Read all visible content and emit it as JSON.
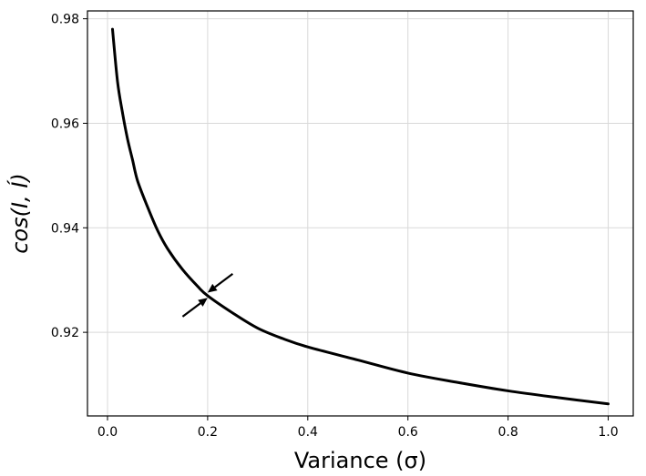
{
  "chart_data": {
    "type": "line",
    "title": "",
    "xlabel": "Variance (σ)",
    "ylabel": "cos(I, Í)",
    "xlim": [
      -0.04,
      1.05
    ],
    "ylim": [
      0.904,
      0.9815
    ],
    "xticks": [
      0.0,
      0.2,
      0.4,
      0.6,
      0.8,
      1.0
    ],
    "xtick_labels": [
      "0.0",
      "0.2",
      "0.4",
      "0.6",
      "0.8",
      "1.0"
    ],
    "yticks": [
      0.92,
      0.94,
      0.96,
      0.98
    ],
    "ytick_labels": [
      "0.92",
      "0.94",
      "0.96",
      "0.98"
    ],
    "grid": true,
    "legend": "none",
    "series": [
      {
        "color": "#000000",
        "x": [
          0.01,
          0.02,
          0.03,
          0.04,
          0.05,
          0.06,
          0.08,
          0.1,
          0.12,
          0.15,
          0.18,
          0.2,
          0.25,
          0.3,
          0.35,
          0.4,
          0.5,
          0.6,
          0.7,
          0.8,
          0.9,
          1.0
        ],
        "y": [
          0.978,
          0.968,
          0.962,
          0.957,
          0.953,
          0.949,
          0.944,
          0.9395,
          0.936,
          0.932,
          0.9288,
          0.927,
          0.9237,
          0.9208,
          0.9188,
          0.9172,
          0.9147,
          0.9122,
          0.9104,
          0.9088,
          0.9075,
          0.9063
        ]
      }
    ],
    "annotations": [
      {
        "type": "arrow",
        "from": [
          0.15,
          0.923
        ],
        "to": [
          0.2,
          0.9266
        ],
        "color": "#000000"
      },
      {
        "type": "arrow",
        "from": [
          0.25,
          0.9312
        ],
        "to": [
          0.2,
          0.9276
        ],
        "color": "#000000"
      }
    ]
  }
}
